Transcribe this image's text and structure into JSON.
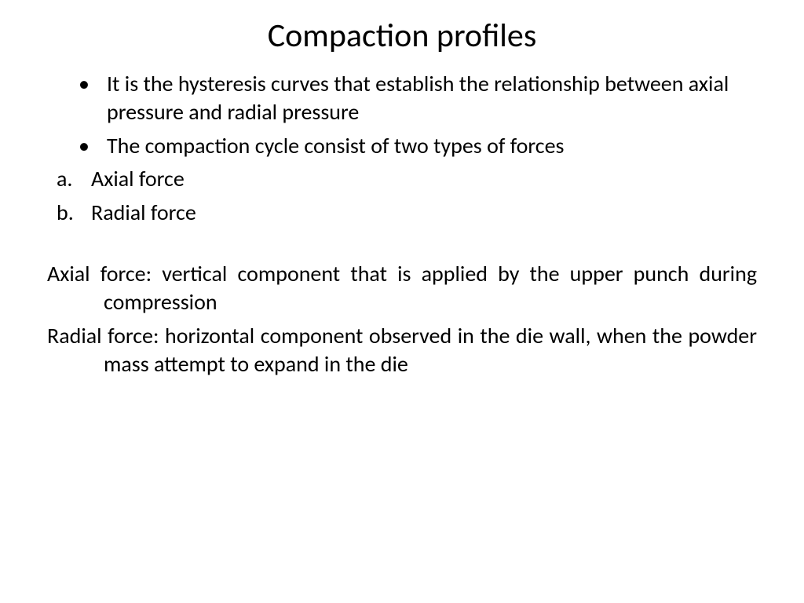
{
  "title": "Compaction profiles",
  "bullets": [
    "It is the hysteresis curves that establish the relationship between axial pressure and radial pressure",
    "The compaction cycle consist of two types of forces"
  ],
  "lettered_items": [
    {
      "marker": "a.",
      "text": "Axial force"
    },
    {
      "marker": "b.",
      "text": "Radial force"
    }
  ],
  "definitions": [
    "Axial force: vertical component that is applied by the upper punch during compression",
    "Radial force: horizontal component observed in the die wall, when the powder mass attempt to expand in the die"
  ],
  "colors": {
    "background": "#ffffff",
    "text": "#000000"
  },
  "fonts": {
    "title_size": 42,
    "body_size": 28,
    "family": "Calibri"
  }
}
